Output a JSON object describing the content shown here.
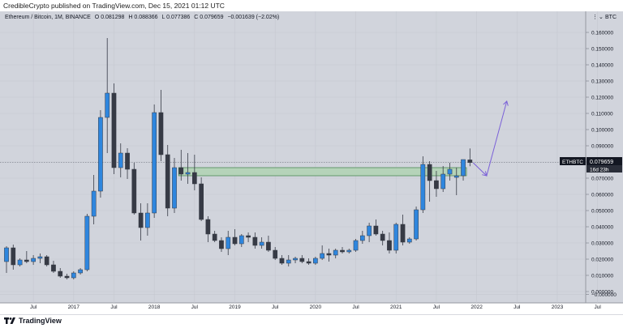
{
  "header": {
    "publish_line": "CredibleCrypto published on TradingView.com, Dec 15, 2021 01:12 UTC"
  },
  "legend": {
    "symbol": "Ethereum / Bitcoin, 1M, BINANCE",
    "o_label": "O",
    "o_value": "0.081298",
    "h_label": "H",
    "h_value": "0.088366",
    "l_label": "L",
    "l_value": "0.077386",
    "c_label": "C",
    "c_value": "0.079659",
    "change": "−0.001639 (−2.02%)"
  },
  "axis": {
    "currency_label": "BTC",
    "ticker_tag": "ETHBTC",
    "price_tag": "0.079659",
    "countdown_tag": "16d 23h"
  },
  "footer": {
    "brand": "TradingView"
  },
  "colors": {
    "background": "#d1d4dc",
    "bull": "#2e86de",
    "bear": "#363a45",
    "zone_fill": "#b5d3b9",
    "zone_border": "#4d8a55",
    "arrow": "#7b61d8"
  },
  "chart_data": {
    "type": "candlestick",
    "interval": "1M",
    "ylim": [
      -0.005,
      0.17
    ],
    "yticks": [
      "0.160000",
      "0.150000",
      "0.140000",
      "0.130000",
      "0.120000",
      "0.110000",
      "0.100000",
      "0.090000",
      "0.080000",
      "0.070000",
      "0.060000",
      "0.050000",
      "0.040000",
      "0.030000",
      "0.020000",
      "0.010000",
      "0.000000",
      "−0.000000"
    ],
    "xticks": [
      "Jul",
      "2017",
      "Jul",
      "2018",
      "Jul",
      "2019",
      "Jul",
      "2020",
      "Jul",
      "2021",
      "Jul",
      "2022",
      "Jul",
      "2023",
      "Jul"
    ],
    "zone": {
      "low": 0.0715,
      "high": 0.0765,
      "from": "2018-05",
      "to": "2021-11"
    },
    "projection": [
      {
        "date": "2021-12",
        "value": 0.0795
      },
      {
        "date": "2022-02",
        "value": 0.0715
      },
      {
        "date": "2022-05",
        "value": 0.1175
      }
    ],
    "candles": [
      {
        "date": "2016-03",
        "open": 0.0185,
        "high": 0.028,
        "low": 0.0115,
        "close": 0.027
      },
      {
        "date": "2016-04",
        "open": 0.027,
        "high": 0.029,
        "low": 0.0135,
        "close": 0.0165
      },
      {
        "date": "2016-05",
        "open": 0.0165,
        "high": 0.0205,
        "low": 0.0155,
        "close": 0.0195
      },
      {
        "date": "2016-06",
        "open": 0.0195,
        "high": 0.025,
        "low": 0.0175,
        "close": 0.0185
      },
      {
        "date": "2016-07",
        "open": 0.0185,
        "high": 0.0225,
        "low": 0.0165,
        "close": 0.0205
      },
      {
        "date": "2016-08",
        "open": 0.0205,
        "high": 0.0235,
        "low": 0.0175,
        "close": 0.0215
      },
      {
        "date": "2016-09",
        "open": 0.0215,
        "high": 0.0225,
        "low": 0.0155,
        "close": 0.0165
      },
      {
        "date": "2016-10",
        "open": 0.0165,
        "high": 0.019,
        "low": 0.0115,
        "close": 0.0125
      },
      {
        "date": "2016-11",
        "open": 0.0125,
        "high": 0.0145,
        "low": 0.0085,
        "close": 0.0095
      },
      {
        "date": "2016-12",
        "open": 0.0095,
        "high": 0.011,
        "low": 0.0075,
        "close": 0.0085
      },
      {
        "date": "2017-01",
        "open": 0.0085,
        "high": 0.0125,
        "low": 0.0075,
        "close": 0.0115
      },
      {
        "date": "2017-02",
        "open": 0.0115,
        "high": 0.0145,
        "low": 0.0105,
        "close": 0.0135
      },
      {
        "date": "2017-03",
        "open": 0.0135,
        "high": 0.048,
        "low": 0.0125,
        "close": 0.0465
      },
      {
        "date": "2017-04",
        "open": 0.0465,
        "high": 0.072,
        "low": 0.0415,
        "close": 0.062
      },
      {
        "date": "2017-05",
        "open": 0.062,
        "high": 0.112,
        "low": 0.058,
        "close": 0.1075
      },
      {
        "date": "2017-06",
        "open": 0.1075,
        "high": 0.1565,
        "low": 0.0855,
        "close": 0.1225
      },
      {
        "date": "2017-07",
        "open": 0.1225,
        "high": 0.1285,
        "low": 0.0725,
        "close": 0.0765
      },
      {
        "date": "2017-08",
        "open": 0.0765,
        "high": 0.0915,
        "low": 0.0705,
        "close": 0.0855
      },
      {
        "date": "2017-09",
        "open": 0.0855,
        "high": 0.0885,
        "low": 0.0695,
        "close": 0.0755
      },
      {
        "date": "2017-10",
        "open": 0.0755,
        "high": 0.0795,
        "low": 0.0475,
        "close": 0.0485
      },
      {
        "date": "2017-11",
        "open": 0.0485,
        "high": 0.0545,
        "low": 0.0315,
        "close": 0.0395
      },
      {
        "date": "2017-12",
        "open": 0.0395,
        "high": 0.0545,
        "low": 0.0345,
        "close": 0.0485
      },
      {
        "date": "2018-01",
        "open": 0.0485,
        "high": 0.1155,
        "low": 0.0455,
        "close": 0.1105
      },
      {
        "date": "2018-02",
        "open": 0.1105,
        "high": 0.1245,
        "low": 0.0805,
        "close": 0.0845
      },
      {
        "date": "2018-03",
        "open": 0.0845,
        "high": 0.0905,
        "low": 0.0465,
        "close": 0.0515
      },
      {
        "date": "2018-04",
        "open": 0.0515,
        "high": 0.0825,
        "low": 0.0485,
        "close": 0.0765
      },
      {
        "date": "2018-05",
        "open": 0.0765,
        "high": 0.0875,
        "low": 0.0685,
        "close": 0.0725
      },
      {
        "date": "2018-06",
        "open": 0.0725,
        "high": 0.0855,
        "low": 0.0665,
        "close": 0.0735
      },
      {
        "date": "2018-07",
        "open": 0.0735,
        "high": 0.0845,
        "low": 0.0625,
        "close": 0.0665
      },
      {
        "date": "2018-08",
        "open": 0.0665,
        "high": 0.0705,
        "low": 0.0435,
        "close": 0.0445
      },
      {
        "date": "2018-09",
        "open": 0.0445,
        "high": 0.0465,
        "low": 0.0305,
        "close": 0.0355
      },
      {
        "date": "2018-10",
        "open": 0.0355,
        "high": 0.0375,
        "low": 0.0305,
        "close": 0.0315
      },
      {
        "date": "2018-11",
        "open": 0.0315,
        "high": 0.0335,
        "low": 0.0245,
        "close": 0.0265
      },
      {
        "date": "2018-12",
        "open": 0.0265,
        "high": 0.0375,
        "low": 0.0225,
        "close": 0.0335
      },
      {
        "date": "2019-01",
        "open": 0.0335,
        "high": 0.0385,
        "low": 0.0285,
        "close": 0.0295
      },
      {
        "date": "2019-02",
        "open": 0.0295,
        "high": 0.0355,
        "low": 0.0275,
        "close": 0.0345
      },
      {
        "date": "2019-03",
        "open": 0.0345,
        "high": 0.0365,
        "low": 0.0305,
        "close": 0.0335
      },
      {
        "date": "2019-04",
        "open": 0.0335,
        "high": 0.0365,
        "low": 0.0265,
        "close": 0.0285
      },
      {
        "date": "2019-05",
        "open": 0.0285,
        "high": 0.0335,
        "low": 0.0265,
        "close": 0.0305
      },
      {
        "date": "2019-06",
        "open": 0.0305,
        "high": 0.0345,
        "low": 0.0245,
        "close": 0.0255
      },
      {
        "date": "2019-07",
        "open": 0.0255,
        "high": 0.0275,
        "low": 0.0195,
        "close": 0.0205
      },
      {
        "date": "2019-08",
        "open": 0.0205,
        "high": 0.0225,
        "low": 0.0165,
        "close": 0.0175
      },
      {
        "date": "2019-09",
        "open": 0.0175,
        "high": 0.0225,
        "low": 0.0155,
        "close": 0.0195
      },
      {
        "date": "2019-10",
        "open": 0.0195,
        "high": 0.0215,
        "low": 0.0175,
        "close": 0.0205
      },
      {
        "date": "2019-11",
        "open": 0.0205,
        "high": 0.0225,
        "low": 0.0175,
        "close": 0.0185
      },
      {
        "date": "2019-12",
        "open": 0.0185,
        "high": 0.0205,
        "low": 0.0165,
        "close": 0.0175
      },
      {
        "date": "2020-01",
        "open": 0.0175,
        "high": 0.0215,
        "low": 0.0165,
        "close": 0.0205
      },
      {
        "date": "2020-02",
        "open": 0.0205,
        "high": 0.0285,
        "low": 0.0195,
        "close": 0.0235
      },
      {
        "date": "2020-03",
        "open": 0.0235,
        "high": 0.0265,
        "low": 0.0185,
        "close": 0.0225
      },
      {
        "date": "2020-04",
        "open": 0.0225,
        "high": 0.0265,
        "low": 0.0205,
        "close": 0.0255
      },
      {
        "date": "2020-05",
        "open": 0.0255,
        "high": 0.0275,
        "low": 0.0235,
        "close": 0.0245
      },
      {
        "date": "2020-06",
        "open": 0.0245,
        "high": 0.0265,
        "low": 0.0235,
        "close": 0.0255
      },
      {
        "date": "2020-07",
        "open": 0.0255,
        "high": 0.0325,
        "low": 0.0245,
        "close": 0.0315
      },
      {
        "date": "2020-08",
        "open": 0.0315,
        "high": 0.0375,
        "low": 0.0295,
        "close": 0.0345
      },
      {
        "date": "2020-09",
        "open": 0.0345,
        "high": 0.0425,
        "low": 0.0305,
        "close": 0.0405
      },
      {
        "date": "2020-10",
        "open": 0.0405,
        "high": 0.0445,
        "low": 0.0345,
        "close": 0.0355
      },
      {
        "date": "2020-11",
        "open": 0.0355,
        "high": 0.0375,
        "low": 0.0285,
        "close": 0.0315
      },
      {
        "date": "2020-12",
        "open": 0.0315,
        "high": 0.0365,
        "low": 0.0235,
        "close": 0.0255
      },
      {
        "date": "2021-01",
        "open": 0.0255,
        "high": 0.0425,
        "low": 0.0235,
        "close": 0.0415
      },
      {
        "date": "2021-02",
        "open": 0.0415,
        "high": 0.0475,
        "low": 0.0285,
        "close": 0.0305
      },
      {
        "date": "2021-03",
        "open": 0.0305,
        "high": 0.0335,
        "low": 0.0295,
        "close": 0.0325
      },
      {
        "date": "2021-04",
        "open": 0.0325,
        "high": 0.0525,
        "low": 0.0315,
        "close": 0.0505
      },
      {
        "date": "2021-05",
        "open": 0.0505,
        "high": 0.0835,
        "low": 0.0485,
        "close": 0.0785
      },
      {
        "date": "2021-06",
        "open": 0.0785,
        "high": 0.0805,
        "low": 0.0555,
        "close": 0.0685
      },
      {
        "date": "2021-07",
        "open": 0.0685,
        "high": 0.0745,
        "low": 0.0585,
        "close": 0.0635
      },
      {
        "date": "2021-08",
        "open": 0.0635,
        "high": 0.0775,
        "low": 0.0615,
        "close": 0.0725
      },
      {
        "date": "2021-09",
        "open": 0.0725,
        "high": 0.0795,
        "low": 0.0685,
        "close": 0.0755
      },
      {
        "date": "2021-10",
        "open": 0.0705,
        "high": 0.0765,
        "low": 0.0595,
        "close": 0.0715
      },
      {
        "date": "2021-11",
        "open": 0.0715,
        "high": 0.0815,
        "low": 0.0685,
        "close": 0.0815
      },
      {
        "date": "2021-12",
        "open": 0.081298,
        "high": 0.088366,
        "low": 0.077386,
        "close": 0.079659
      }
    ]
  }
}
